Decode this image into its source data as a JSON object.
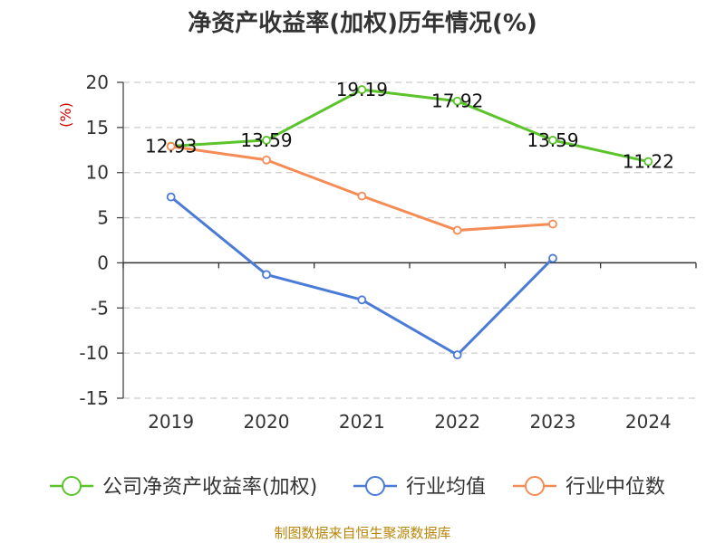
{
  "chart_data": {
    "type": "line",
    "title": "净资产收益率(加权)历年情况(%)",
    "ylabel": "(%)",
    "xlabel": "",
    "categories": [
      "2019",
      "2020",
      "2021",
      "2022",
      "2023",
      "2024"
    ],
    "ylim": [
      -15,
      20
    ],
    "yticks": [
      20,
      15,
      10,
      5,
      0,
      -5,
      -10,
      -15
    ],
    "grid": true,
    "legend_position": "bottom",
    "series": [
      {
        "name": "公司净资产收益率(加权)",
        "color": "#5cc42b",
        "values": [
          12.93,
          13.59,
          19.19,
          17.92,
          13.59,
          11.22
        ],
        "labels": [
          "12.93",
          "13.59",
          "19.19",
          "17.92",
          "13.59",
          "11.22"
        ]
      },
      {
        "name": "行业均值",
        "color": "#4a7bd6",
        "values": [
          7.3,
          -1.3,
          -4.1,
          -10.2,
          0.5,
          null
        ]
      },
      {
        "name": "行业中位数",
        "color": "#f58c55",
        "values": [
          12.9,
          11.4,
          7.4,
          3.6,
          4.3,
          null
        ]
      }
    ]
  },
  "source": "制图数据来自恒生聚源数据库"
}
